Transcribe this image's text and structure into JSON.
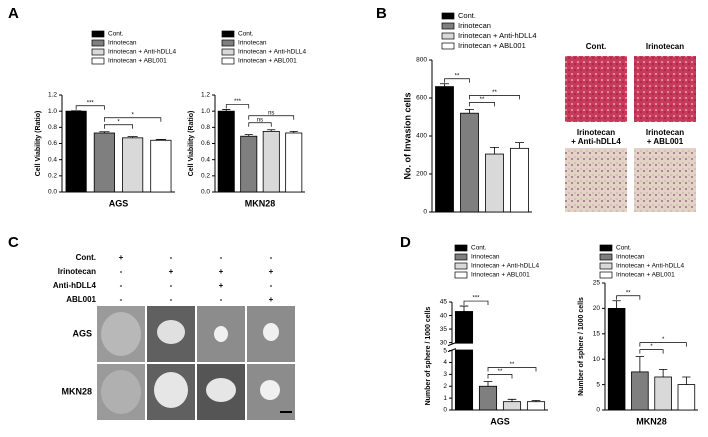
{
  "panels": [
    "A",
    "B",
    "C",
    "D"
  ],
  "chart_data": [
    {
      "type": "bar",
      "xlabel": "AGS",
      "ylabel": "Cell Viability (Ratio)",
      "categories": [
        "Cont.",
        "Irinotecan",
        "Irinotecan + Anti-hDLL4",
        "Irinotecan + ABL001"
      ],
      "colors": [
        "#000000",
        "#7f7f7f",
        "#d9d9d9",
        "#ffffff"
      ],
      "values": [
        1.0,
        0.73,
        0.67,
        0.64
      ],
      "errors": [
        0.005,
        0.015,
        0.015,
        0.01
      ],
      "ylim": [
        0,
        1.2
      ],
      "yticks": [
        {
          "value": 0,
          "label": "0.0"
        },
        0.2,
        0.4,
        0.6,
        0.8,
        {
          "value": 1,
          "label": "1.0"
        },
        1.2
      ],
      "annotations": [
        "***",
        "*",
        "*"
      ]
    },
    {
      "type": "bar",
      "xlabel": "MKN28",
      "ylabel": "Cell Viability (Ratio)",
      "categories": [
        "Cont.",
        "Irinotecan",
        "Irinotecan + Anti-hDLL4",
        "Irinotecan + ABL001"
      ],
      "colors": [
        "#000000",
        "#7f7f7f",
        "#d9d9d9",
        "#ffffff"
      ],
      "values": [
        1.0,
        0.69,
        0.75,
        0.73
      ],
      "errors": [
        0.02,
        0.02,
        0.02,
        0.02
      ],
      "ylim": [
        0,
        1.2
      ],
      "yticks": [
        {
          "value": 0,
          "label": "0.0"
        },
        0.2,
        0.4,
        0.6,
        0.8,
        {
          "value": 1,
          "label": "1.0"
        },
        1.2
      ],
      "annotations": [
        "***",
        "ns",
        "ns"
      ]
    },
    {
      "type": "bar",
      "ylabel": "No. of Invasion cells",
      "categories": [
        "Cont.",
        "Irinotecan",
        "Irinotecan + Anti-hDLL4",
        "Irinotecan + ABL001"
      ],
      "colors": [
        "#000000",
        "#7f7f7f",
        "#d9d9d9",
        "#ffffff"
      ],
      "values": [
        660,
        520,
        305,
        335
      ],
      "errors": [
        15,
        20,
        35,
        30
      ],
      "ylim": [
        0,
        800
      ],
      "yticks": [
        0,
        200,
        400,
        600,
        800
      ],
      "annotations": [
        "**",
        "**",
        "**"
      ]
    },
    {
      "type": "bar",
      "xlabel": "AGS",
      "ylabel": "Number of sphere / 1000 cells",
      "categories": [
        "Cont.",
        "Irinotecan",
        "Irinotecan + Anti-hDLL4",
        "Irinotecan + ABL001"
      ],
      "colors": [
        "#000000",
        "#7f7f7f",
        "#d9d9d9",
        "#ffffff"
      ],
      "values": [
        41.5,
        2.0,
        0.7,
        0.7
      ],
      "errors": [
        2,
        0.4,
        0.2,
        0.1
      ],
      "ylim": [
        0,
        45
      ],
      "axis_break": [
        5,
        30
      ],
      "yticks": [
        0,
        1,
        2,
        3,
        4,
        5,
        30,
        35,
        40,
        45
      ],
      "annotations": [
        "***",
        "**",
        "**"
      ]
    },
    {
      "type": "bar",
      "xlabel": "MKN28",
      "ylabel": "Number of sphere / 1000 cells",
      "categories": [
        "Cont.",
        "Irinotecan",
        "Irinotecan + Anti-hDLL4",
        "Irinotecan + ABL001"
      ],
      "colors": [
        "#000000",
        "#7f7f7f",
        "#d9d9d9",
        "#ffffff"
      ],
      "values": [
        20,
        7.5,
        6.5,
        5.0
      ],
      "errors": [
        1.5,
        3,
        1.5,
        1.5
      ],
      "ylim": [
        0,
        25
      ],
      "yticks": [
        0,
        5,
        10,
        15,
        20,
        25
      ],
      "annotations": [
        "**",
        "*",
        "*"
      ]
    }
  ],
  "photo_labels": [
    [
      "Cont."
    ],
    [
      "Irinotecan"
    ],
    [
      "Irinotecan",
      "+ Anti-hDLL4"
    ],
    [
      "Irinotecan",
      "+ ABL001"
    ]
  ],
  "panel_c": {
    "treatments": [
      {
        "label": "Cont.",
        "signs": [
          "+",
          "-",
          "-",
          "-"
        ]
      },
      {
        "label": "Irinotecan",
        "signs": [
          "-",
          "+",
          "+",
          "+"
        ]
      },
      {
        "label": "Anti-hDLL4",
        "signs": [
          "-",
          "-",
          "+",
          "-"
        ]
      },
      {
        "label": "ABL001",
        "signs": [
          "-",
          "-",
          "-",
          "+"
        ]
      }
    ],
    "rows": [
      "AGS",
      "MKN28"
    ]
  }
}
